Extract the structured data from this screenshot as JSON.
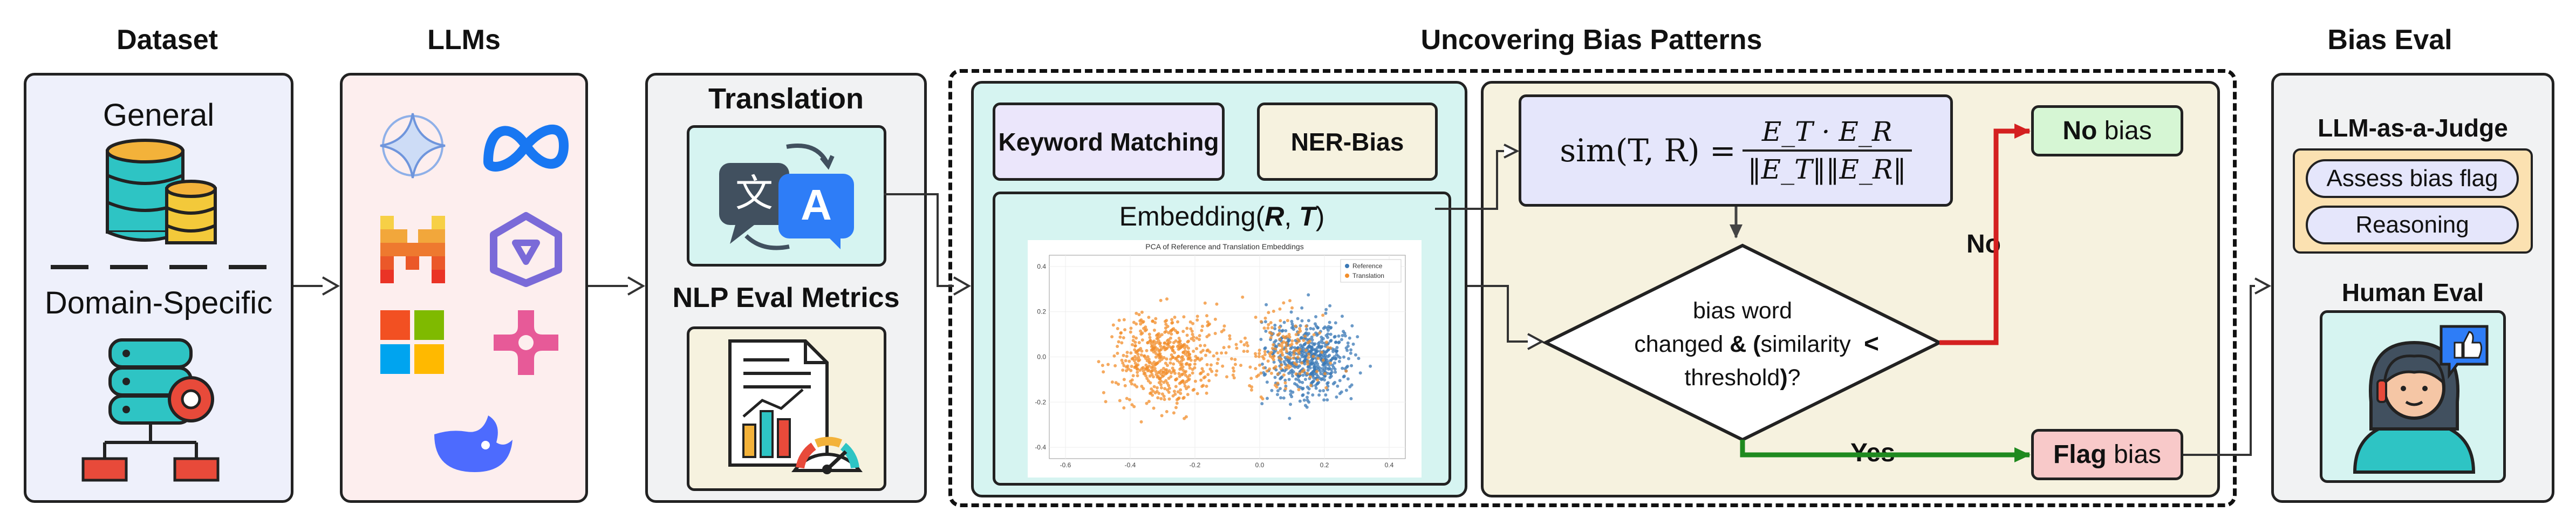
{
  "sections": {
    "dataset": "Dataset",
    "llms": "LLMs",
    "uncovering": "Uncovering Bias Patterns",
    "bias_eval": "Bias Eval"
  },
  "dataset_panel": {
    "general": "General",
    "domain_specific": "Domain-Specific"
  },
  "translation_panel": {
    "translation": "Translation",
    "nlp_metrics": "NLP Eval Metrics",
    "translate_icon_left": "文",
    "translate_icon_right": "A"
  },
  "methods": {
    "keyword": "Keyword Matching",
    "ner": "NER-Bias",
    "embedding_prefix": "Embedding(",
    "embedding_r": "R",
    "embedding_sep": ", ",
    "embedding_t": "T",
    "embedding_suffix": ")"
  },
  "pca_plot": {
    "title": "PCA of Reference and Translation Embeddings",
    "legend": [
      "Reference",
      "Translation"
    ],
    "x_ticks": [
      "-0.6",
      "-0.4",
      "-0.2",
      "0.0",
      "0.2",
      "0.4"
    ],
    "y_ticks": [
      "0.4",
      "0.2",
      "0.0",
      "-0.2",
      "-0.4"
    ],
    "colors": {
      "reference": "#3a78b5",
      "translation": "#f28e2b"
    }
  },
  "decision": {
    "formula_lhs": "sim(T, R) = ",
    "formula_num": "E_T · E_R",
    "formula_den": "‖E_T‖‖E_R‖",
    "line1": "bias word",
    "line2a": "changed ",
    "line2b": "& (",
    "line2c": "similarity",
    "line3a": "threshold",
    "line3b": ")",
    "line3c": "?",
    "lt": "<",
    "no": "No",
    "yes": "Yes",
    "no_bias_bold": "No",
    "no_bias_rest": " bias",
    "flag_bold": "Flag",
    "flag_rest": " bias"
  },
  "bias_eval_panel": {
    "judge_title": "LLM-as-a-Judge",
    "assess": "Assess bias flag",
    "reasoning": "Reasoning",
    "human_title": "Human Eval"
  },
  "colors": {
    "dataset_bg": "#eef0fb",
    "llm_bg": "#fdeeee",
    "translation_bg": "#f1f2f3",
    "teal_box": "#d6f4f1",
    "cream": "#f6f2df",
    "green_box": "#d6f6d4",
    "flag_box": "#f8c9c9",
    "judge_bg": "#fbe1b1",
    "pill": "#e5e6fb",
    "red_arrow": "#d42020",
    "green_arrow": "#1f8a1f"
  }
}
